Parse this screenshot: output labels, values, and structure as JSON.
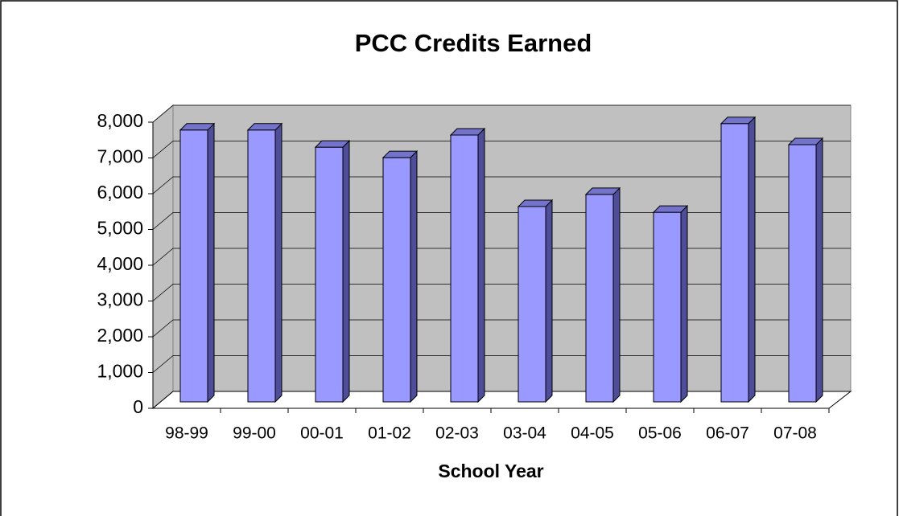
{
  "chart_data": {
    "type": "bar",
    "title": "PCC Credits Earned",
    "x_label": "School Year",
    "categories": [
      "98-99",
      "99-00",
      "00-01",
      "01-02",
      "02-03",
      "03-04",
      "04-05",
      "05-06",
      "06-07",
      "07-08"
    ],
    "values": [
      7600,
      7600,
      7120,
      6830,
      7460,
      5460,
      5800,
      5300,
      7780,
      7190
    ],
    "color": "#9999ff",
    "ylim": [
      0,
      8000
    ],
    "yticks": [
      0,
      {
        "value": 1000,
        "label": "1,000"
      },
      {
        "value": 2000,
        "label": "2,000"
      },
      {
        "value": 3000,
        "label": "3,000"
      },
      {
        "value": 4000,
        "label": "4,000"
      },
      {
        "value": 5000,
        "label": "5,000"
      },
      {
        "value": 6000,
        "label": "6,000"
      },
      {
        "value": 7000,
        "label": "7,000"
      },
      {
        "value": 8000,
        "label": "8,000"
      }
    ],
    "grid": true
  }
}
